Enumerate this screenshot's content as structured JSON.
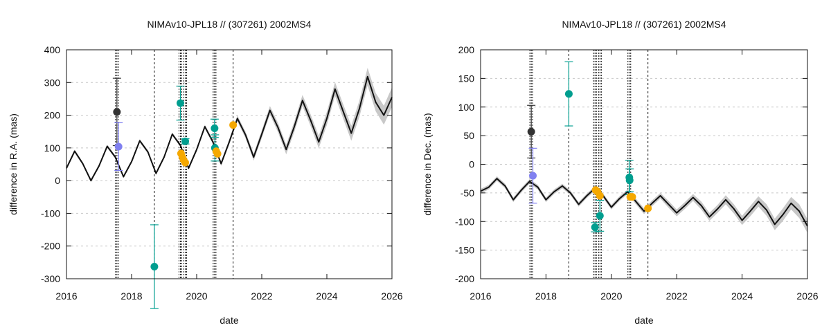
{
  "chart_data": [
    {
      "type": "scatter",
      "title": "NIMAv10-JPL18 // (307261) 2002MS4",
      "xlabel": "date",
      "ylabel": "difference in R.A. (mas)",
      "xlim": [
        2016,
        2026
      ],
      "ylim": [
        -300,
        400
      ],
      "x_ticks": [
        2016,
        2018,
        2020,
        2022,
        2024,
        2026
      ],
      "y_ticks": [
        -300,
        -200,
        -100,
        0,
        100,
        200,
        300,
        400
      ],
      "grid": true,
      "legend": "none",
      "model_curve": {
        "x": [
          2016.0,
          2016.25,
          2016.5,
          2016.75,
          2017.0,
          2017.25,
          2017.5,
          2017.75,
          2018.0,
          2018.25,
          2018.5,
          2018.75,
          2019.0,
          2019.25,
          2019.5,
          2019.75,
          2020.0,
          2020.25,
          2020.5,
          2020.75,
          2021.0,
          2021.25,
          2021.5,
          2021.75,
          2022.0,
          2022.25,
          2022.5,
          2022.75,
          2023.0,
          2023.25,
          2023.5,
          2023.75,
          2024.0,
          2024.25,
          2024.5,
          2024.75,
          2025.0,
          2025.25,
          2025.5,
          2025.75,
          2026.0
        ],
        "y": [
          38,
          90,
          52,
          0,
          45,
          105,
          72,
          12,
          58,
          122,
          88,
          22,
          72,
          142,
          108,
          38,
          95,
          165,
          118,
          52,
          118,
          190,
          140,
          72,
          142,
          215,
          162,
          95,
          165,
          245,
          185,
          118,
          190,
          280,
          212,
          145,
          220,
          318,
          240,
          200,
          255
        ],
        "band_halfwidth": [
          5,
          5,
          5,
          5,
          5,
          5,
          5,
          5,
          5,
          5,
          5,
          5,
          5,
          5,
          5,
          5,
          6,
          6,
          6,
          7,
          8,
          9,
          10,
          11,
          12,
          13,
          14,
          15,
          16,
          17,
          18,
          19,
          20,
          21,
          22,
          23,
          25,
          27,
          28,
          29,
          30
        ]
      },
      "observation_epochs": [
        {
          "x": 2017.55,
          "style": "dense"
        },
        {
          "x": 2018.7,
          "style": "single"
        },
        {
          "x": 2019.5,
          "style": "dense"
        },
        {
          "x": 2019.65,
          "style": "dense"
        },
        {
          "x": 2020.55,
          "style": "dense"
        },
        {
          "x": 2021.12,
          "style": "single"
        }
      ],
      "series": [
        {
          "color": "#333333",
          "points": [
            {
              "x": 2017.55,
              "y": 210,
              "err": 103
            }
          ]
        },
        {
          "color": "#8080f0",
          "points": [
            {
              "x": 2017.6,
              "y": 104,
              "err": 73
            }
          ]
        },
        {
          "color": "#009e8f",
          "points": [
            {
              "x": 2018.7,
              "y": -263,
              "err": 128
            },
            {
              "x": 2019.5,
              "y": 237,
              "err": 52
            },
            {
              "x": 2019.65,
              "y": 120,
              "err": 8
            },
            {
              "x": 2020.55,
              "y": 160,
              "err": 28
            },
            {
              "x": 2020.56,
              "y": 100,
              "err": 40
            }
          ]
        },
        {
          "color": "#f5a800",
          "points": [
            {
              "x": 2019.52,
              "y": 83,
              "err": 0
            },
            {
              "x": 2019.56,
              "y": 72,
              "err": 0
            },
            {
              "x": 2019.6,
              "y": 63,
              "err": 0
            },
            {
              "x": 2019.65,
              "y": 55,
              "err": 0
            },
            {
              "x": 2020.6,
              "y": 90,
              "err": 0
            },
            {
              "x": 2020.64,
              "y": 82,
              "err": 0
            },
            {
              "x": 2021.12,
              "y": 170,
              "err": 0
            }
          ]
        }
      ]
    },
    {
      "type": "scatter",
      "title": "NIMAv10-JPL18 // (307261) 2002MS4",
      "xlabel": "date",
      "ylabel": "difference in Dec. (mas)",
      "xlim": [
        2016,
        2026
      ],
      "ylim": [
        -200,
        200
      ],
      "x_ticks": [
        2016,
        2018,
        2020,
        2022,
        2024,
        2026
      ],
      "y_ticks": [
        -200,
        -150,
        -100,
        -50,
        0,
        50,
        100,
        150,
        200
      ],
      "grid": true,
      "legend": "none",
      "model_curve": {
        "x": [
          2016.0,
          2016.25,
          2016.5,
          2016.75,
          2017.0,
          2017.25,
          2017.5,
          2017.75,
          2018.0,
          2018.25,
          2018.5,
          2018.75,
          2019.0,
          2019.25,
          2019.5,
          2019.75,
          2020.0,
          2020.25,
          2020.5,
          2020.75,
          2021.0,
          2021.25,
          2021.5,
          2021.75,
          2022.0,
          2022.25,
          2022.5,
          2022.75,
          2023.0,
          2023.25,
          2023.5,
          2023.75,
          2024.0,
          2024.25,
          2024.5,
          2024.75,
          2025.0,
          2025.25,
          2025.5,
          2025.75,
          2026.0
        ],
        "y": [
          -47,
          -40,
          -25,
          -38,
          -62,
          -45,
          -30,
          -40,
          -62,
          -48,
          -38,
          -50,
          -70,
          -55,
          -42,
          -55,
          -75,
          -60,
          -48,
          -65,
          -82,
          -68,
          -55,
          -70,
          -85,
          -72,
          -58,
          -72,
          -92,
          -78,
          -62,
          -78,
          -98,
          -82,
          -65,
          -80,
          -105,
          -88,
          -68,
          -82,
          -108
        ],
        "band_halfwidth": [
          4,
          4,
          4,
          4,
          4,
          4,
          4,
          4,
          4,
          4,
          4,
          4,
          4,
          4,
          4,
          4,
          4,
          4,
          4,
          5,
          5,
          5,
          5,
          6,
          6,
          6,
          6,
          7,
          7,
          7,
          8,
          8,
          8,
          9,
          9,
          10,
          10,
          11,
          11,
          12,
          12
        ]
      },
      "observation_epochs": [
        {
          "x": 2017.55,
          "style": "dense"
        },
        {
          "x": 2018.7,
          "style": "single"
        },
        {
          "x": 2019.5,
          "style": "dense"
        },
        {
          "x": 2019.65,
          "style": "dense"
        },
        {
          "x": 2020.55,
          "style": "dense"
        },
        {
          "x": 2021.12,
          "style": "single"
        }
      ],
      "series": [
        {
          "color": "#333333",
          "points": [
            {
              "x": 2017.55,
              "y": 57,
              "err": 46
            }
          ]
        },
        {
          "color": "#8080f0",
          "points": [
            {
              "x": 2017.6,
              "y": -20,
              "err": 48
            }
          ]
        },
        {
          "color": "#009e8f",
          "points": [
            {
              "x": 2018.7,
              "y": 123,
              "err": 56
            },
            {
              "x": 2019.5,
              "y": -110,
              "err": 8
            },
            {
              "x": 2019.65,
              "y": -90,
              "err": 27
            },
            {
              "x": 2020.55,
              "y": -23,
              "err": 30
            },
            {
              "x": 2020.56,
              "y": -28,
              "err": 20
            }
          ]
        },
        {
          "color": "#f5a800",
          "points": [
            {
              "x": 2019.52,
              "y": -45,
              "err": 0
            },
            {
              "x": 2019.58,
              "y": -48,
              "err": 0
            },
            {
              "x": 2019.65,
              "y": -55,
              "err": 0
            },
            {
              "x": 2020.58,
              "y": -57,
              "err": 0
            },
            {
              "x": 2020.64,
              "y": -57,
              "err": 0
            },
            {
              "x": 2021.12,
              "y": -77,
              "err": 0
            }
          ]
        }
      ]
    }
  ]
}
